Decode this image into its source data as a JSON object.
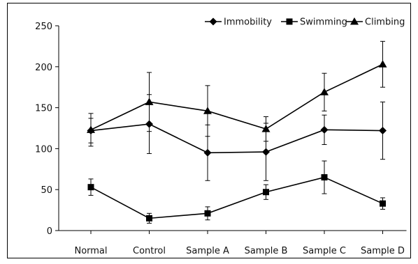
{
  "chart_data": {
    "type": "line",
    "title": "",
    "xlabel": "",
    "ylabel": "",
    "categories": [
      "Normal",
      "Control",
      "Sample A",
      "Sample B",
      "Sample C",
      "Sample D"
    ],
    "ylim": [
      0,
      250
    ],
    "yticks": [
      0,
      50,
      100,
      150,
      200,
      250
    ],
    "grid": false,
    "legend_position": "top-right",
    "series": [
      {
        "name": "Immobility",
        "marker": "diamond",
        "values": [
          122,
          130,
          95,
          96,
          123,
          122
        ],
        "errors": [
          15,
          36,
          34,
          35,
          18,
          35
        ]
      },
      {
        "name": "Swimming",
        "marker": "square",
        "values": [
          53,
          15,
          21,
          47,
          65,
          33
        ],
        "errors": [
          10,
          6,
          8,
          9,
          20,
          7
        ]
      },
      {
        "name": "Climbing",
        "marker": "triangle",
        "values": [
          123,
          157,
          146,
          124,
          169,
          203
        ],
        "errors": [
          20,
          36,
          31,
          15,
          23,
          28
        ]
      }
    ]
  }
}
